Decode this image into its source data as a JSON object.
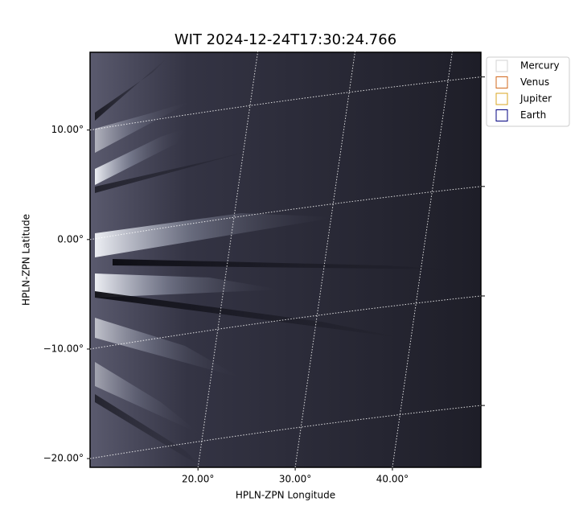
{
  "chart_data": {
    "type": "image",
    "title": "WIT 2024-12-24T17:30:24.766",
    "xlabel": "HPLN-ZPN Longitude",
    "ylabel": "HPLN-ZPN Latitude",
    "xlim": [
      8.9,
      49.1
    ],
    "ylim": [
      -20.8,
      17.1
    ],
    "xticks": [
      {
        "value": 20,
        "label": "20.00°"
      },
      {
        "value": 30,
        "label": "30.00°"
      },
      {
        "value": 40,
        "label": "40.00°"
      }
    ],
    "yticks": [
      {
        "value": -20,
        "label": "−20.00°"
      },
      {
        "value": -10,
        "label": "−10.00°"
      },
      {
        "value": 0,
        "label": "0.00°"
      },
      {
        "value": 10,
        "label": "10.00°"
      }
    ],
    "grid": true,
    "legend_position": "upper-right-outside",
    "series": [
      {
        "name": "Mercury",
        "color": "#d3d3d3"
      },
      {
        "name": "Venus",
        "color": "#d2691e"
      },
      {
        "name": "Jupiter",
        "color": "#daa520"
      },
      {
        "name": "Earth",
        "color": "#000080"
      }
    ]
  }
}
